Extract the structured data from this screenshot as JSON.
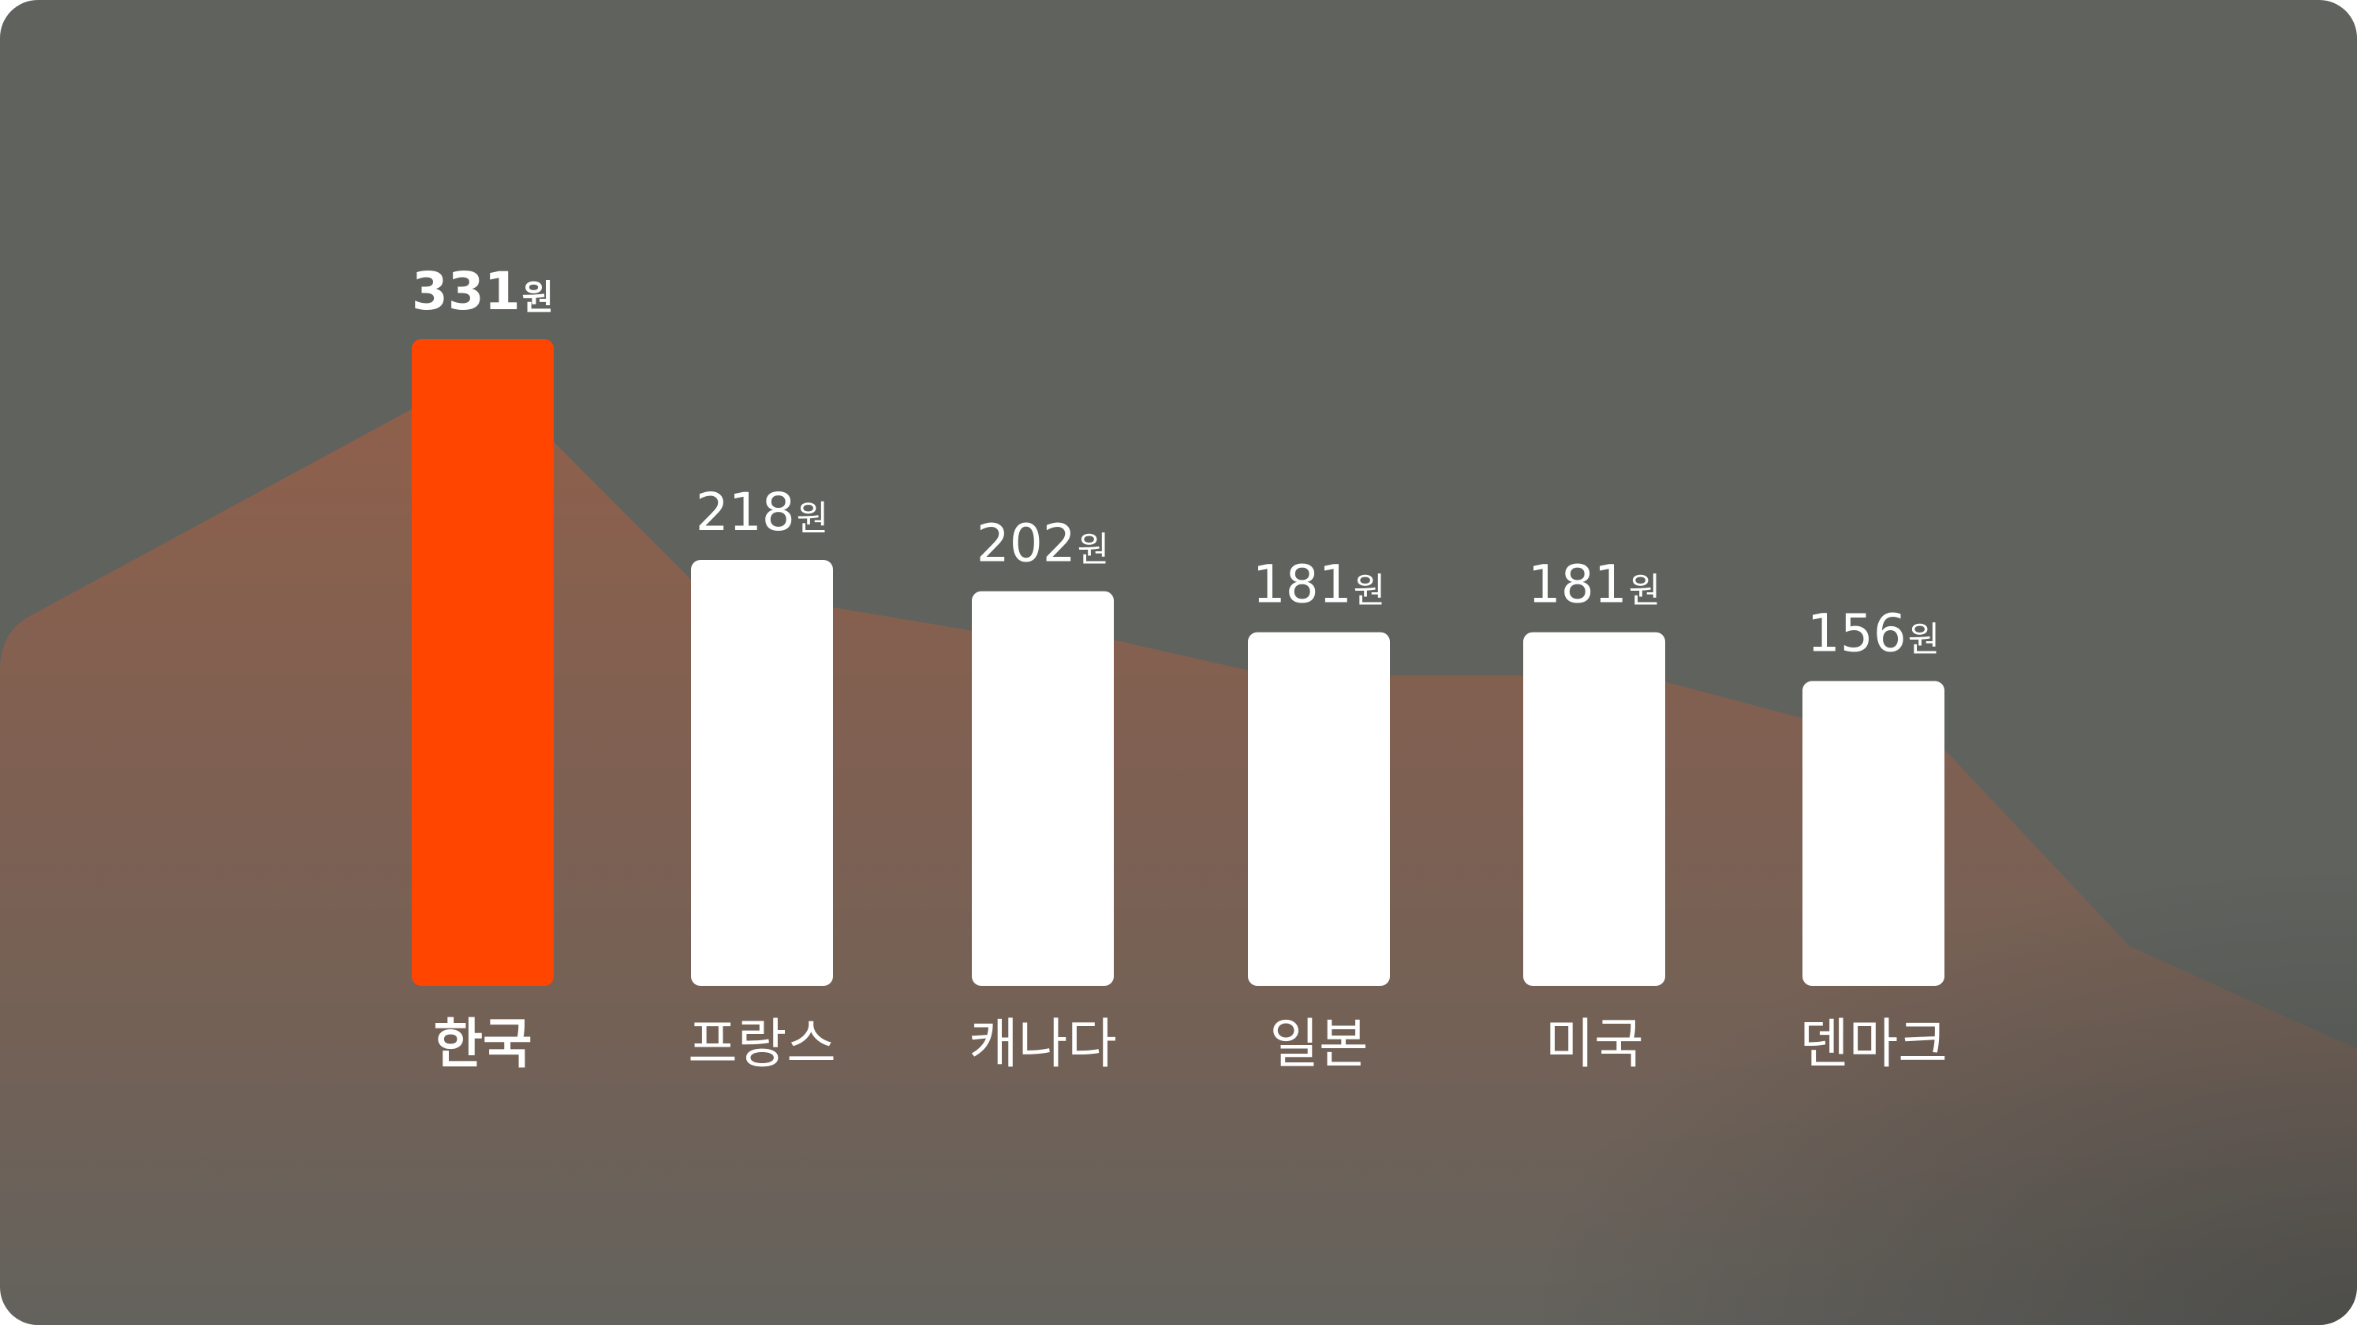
{
  "chart_data": {
    "type": "bar",
    "categories": [
      "한국",
      "프랑스",
      "캐나다",
      "일본",
      "미국",
      "덴마크"
    ],
    "values": [
      331,
      218,
      202,
      181,
      181,
      156
    ],
    "value_labels": [
      "331",
      "218",
      "202",
      "181",
      "181",
      "156"
    ],
    "unit": "원",
    "highlight_index": 0,
    "ylim": [
      0,
      331
    ],
    "grid": false,
    "legend": "none",
    "colors": {
      "background": "#60625e",
      "highlight_bar": "#ff4500",
      "bar": "#ffffff",
      "label": "#ffffff",
      "area": "#ff5a1f"
    }
  }
}
